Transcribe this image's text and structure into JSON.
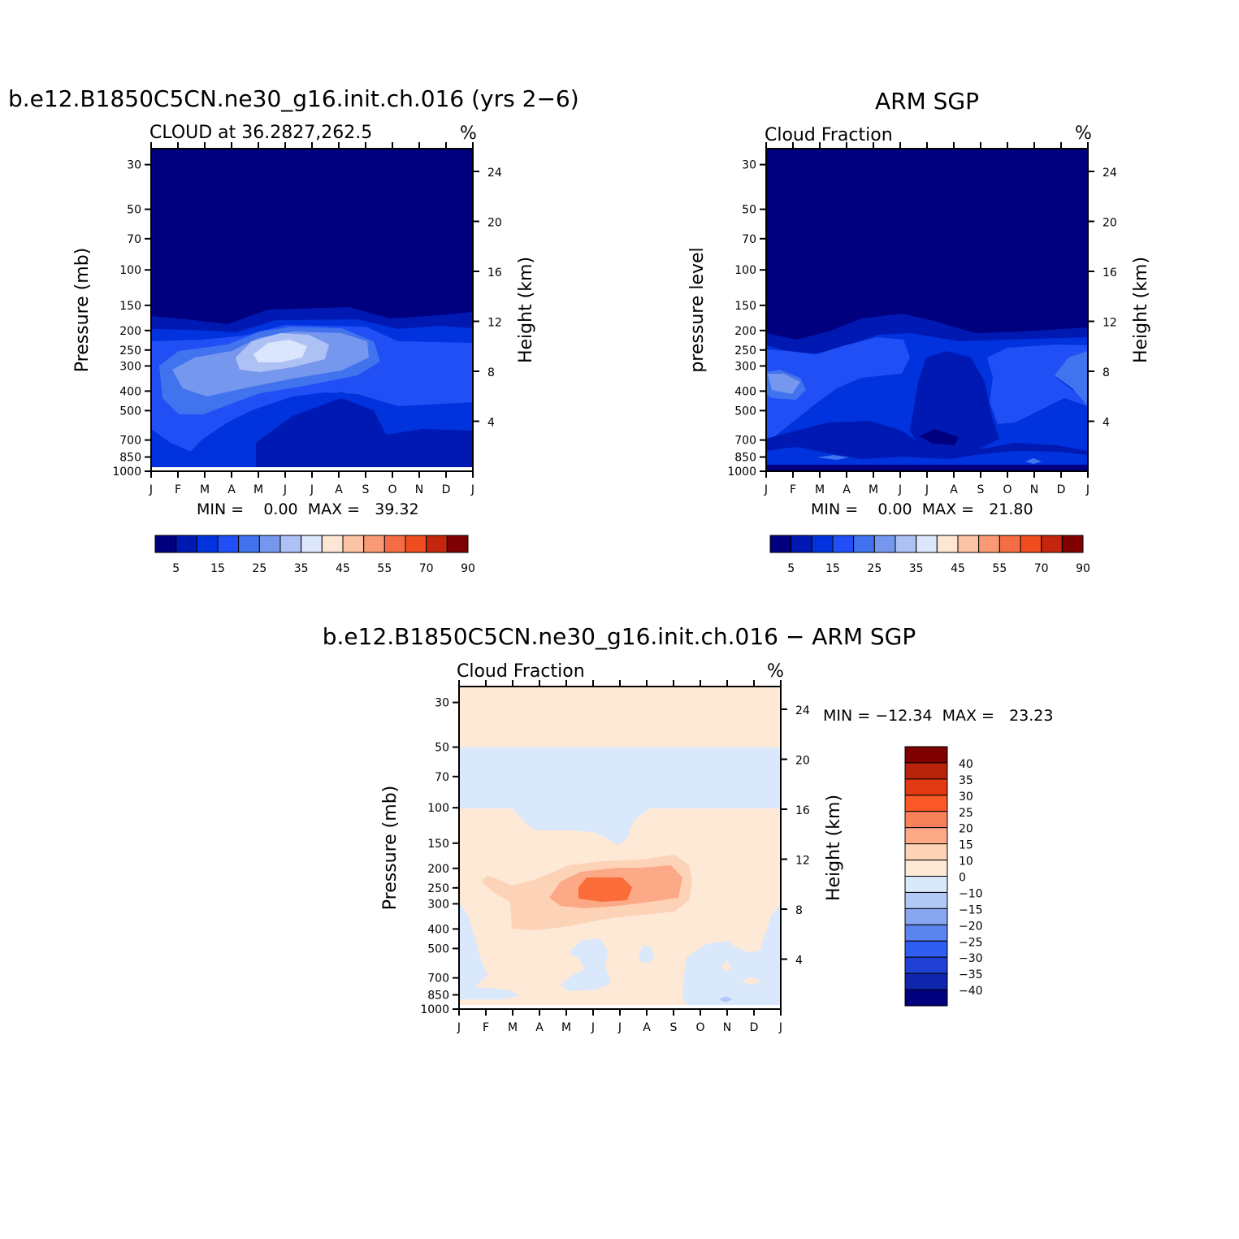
{
  "chart_data": [
    {
      "type": "heatmap",
      "id": "model",
      "title": "b.e12.B1850C5CN.ne30_g16.init.ch.016 (yrs 2−6)",
      "subtitle_left": "CLOUD at 36.2827,262.5",
      "units": "%",
      "ylabel_left": "Pressure (mb)",
      "ylabel_right": "Height (km)",
      "x_ticks": [
        "J",
        "F",
        "M",
        "A",
        "M",
        "J",
        "J",
        "A",
        "S",
        "O",
        "N",
        "D",
        "J"
      ],
      "p_ticks": [
        30,
        50,
        70,
        100,
        150,
        200,
        250,
        300,
        400,
        500,
        700,
        850,
        1000
      ],
      "km_ticks": [
        24,
        20,
        16,
        12,
        8,
        4
      ],
      "ylim_mb": [
        1000,
        25
      ],
      "stats": "MIN =    0.00  MAX =   39.32",
      "min": 0.0,
      "max": 39.32,
      "legend": "horizontal-below"
    },
    {
      "type": "heatmap",
      "id": "obs",
      "title": "ARM SGP",
      "subtitle_left": "Cloud Fraction",
      "units": "%",
      "ylabel_left": "pressure level",
      "ylabel_right": "Height (km)",
      "x_ticks": [
        "J",
        "F",
        "M",
        "A",
        "M",
        "J",
        "J",
        "A",
        "S",
        "O",
        "N",
        "D",
        "J"
      ],
      "p_ticks": [
        30,
        50,
        70,
        100,
        150,
        200,
        250,
        300,
        400,
        500,
        700,
        850,
        1000
      ],
      "km_ticks": [
        24,
        20,
        16,
        12,
        8,
        4
      ],
      "ylim_mb": [
        1000,
        25
      ],
      "stats": "MIN =    0.00  MAX =   21.80",
      "min": 0.0,
      "max": 21.8,
      "legend": "horizontal-below"
    },
    {
      "type": "heatmap",
      "id": "diff",
      "title": "b.e12.B1850C5CN.ne30_g16.init.ch.016 − ARM SGP",
      "subtitle_left": "Cloud Fraction",
      "units": "%",
      "ylabel_left": "Pressure (mb)",
      "ylabel_right": "Height (km)",
      "x_ticks": [
        "J",
        "F",
        "M",
        "A",
        "M",
        "J",
        "J",
        "A",
        "S",
        "O",
        "N",
        "D",
        "J"
      ],
      "p_ticks": [
        30,
        50,
        70,
        100,
        150,
        200,
        250,
        300,
        400,
        500,
        700,
        850,
        1000
      ],
      "km_ticks": [
        24,
        20,
        16,
        12,
        8,
        4
      ],
      "ylim_mb": [
        1000,
        25
      ],
      "stats": "MIN = −12.34  MAX =   23.23",
      "min": -12.34,
      "max": 23.23,
      "legend": "vertical-right"
    }
  ],
  "seq_colorbar": {
    "colors": [
      "#00007f",
      "#0019b3",
      "#0033dd",
      "#1f4ff5",
      "#4173ee",
      "#7597ee",
      "#adc1f5",
      "#dbe6fc",
      "#fde6d3",
      "#fcc3a4",
      "#f99a75",
      "#f56d45",
      "#ef4d1f",
      "#c4260d",
      "#7f0000"
    ],
    "labels": [
      "5",
      "15",
      "25",
      "35",
      "45",
      "55",
      "70",
      "90"
    ]
  },
  "div_colorbar": {
    "colors": [
      "#7f0000",
      "#b8230b",
      "#e23a12",
      "#fb5a28",
      "#f7825a",
      "#fca988",
      "#fcd3b6",
      "#fde9d6",
      "#d9e8fb",
      "#b2c8f5",
      "#89a6f1",
      "#5b83ee",
      "#2f5df0",
      "#1f40d2",
      "#0e25ac",
      "#00007f"
    ],
    "labels": [
      "40",
      "35",
      "30",
      "25",
      "20",
      "15",
      "10",
      "0",
      "−10",
      "−15",
      "−20",
      "−25",
      "−30",
      "−35",
      "−40"
    ]
  }
}
